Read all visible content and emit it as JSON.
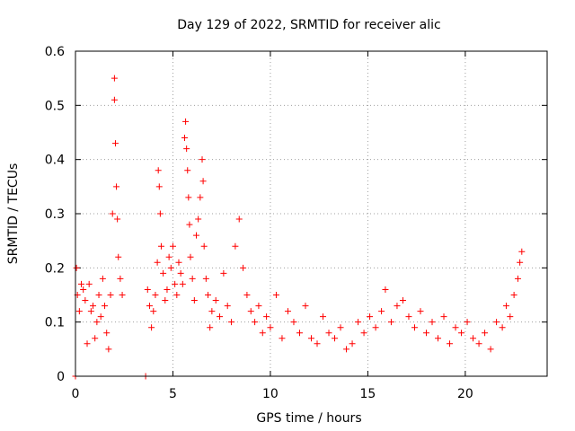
{
  "chart_data": {
    "type": "scatter",
    "title": "Day 129 of 2022, SRMTID for receiver alic",
    "xlabel": "GPS time / hours",
    "ylabel": "SRMTID / TECUs",
    "xlim": [
      0,
      24.2
    ],
    "ylim": [
      0,
      0.6
    ],
    "x_ticks": [
      0,
      5,
      10,
      15,
      20
    ],
    "y_ticks": [
      0,
      0.1,
      0.2,
      0.3,
      0.4,
      0.5,
      0.6
    ],
    "x_tick_labels": [
      "0",
      "5",
      "10",
      "15",
      "20"
    ],
    "y_tick_labels": [
      "0",
      "0.1",
      "0.2",
      "0.3",
      "0.4",
      "0.5",
      "0.6"
    ],
    "grid": true,
    "marker": "+",
    "series": [
      {
        "name": "SRMTID",
        "color": "#ff0000",
        "x": [
          0.0,
          0.05,
          0.1,
          0.2,
          0.3,
          0.4,
          0.5,
          0.6,
          0.7,
          0.8,
          0.9,
          1.0,
          1.1,
          1.2,
          1.3,
          1.4,
          1.5,
          1.6,
          1.7,
          1.8,
          1.9,
          2.0,
          2.0,
          2.05,
          2.1,
          2.15,
          2.2,
          2.3,
          2.4,
          3.6,
          3.7,
          3.8,
          3.9,
          4.0,
          4.1,
          4.2,
          4.25,
          4.3,
          4.35,
          4.4,
          4.5,
          4.6,
          4.7,
          4.8,
          4.9,
          5.0,
          5.1,
          5.2,
          5.3,
          5.4,
          5.5,
          5.6,
          5.65,
          5.7,
          5.75,
          5.8,
          5.85,
          5.9,
          6.0,
          6.1,
          6.2,
          6.3,
          6.4,
          6.5,
          6.55,
          6.6,
          6.7,
          6.8,
          6.9,
          7.0,
          7.2,
          7.4,
          7.6,
          7.8,
          8.0,
          8.2,
          8.4,
          8.6,
          8.8,
          9.0,
          9.2,
          9.4,
          9.6,
          9.8,
          10.0,
          10.3,
          10.6,
          10.9,
          11.2,
          11.5,
          11.8,
          12.1,
          12.4,
          12.7,
          13.0,
          13.3,
          13.6,
          13.9,
          14.2,
          14.5,
          14.8,
          15.1,
          15.4,
          15.7,
          15.9,
          16.2,
          16.5,
          16.8,
          17.1,
          17.4,
          17.7,
          18.0,
          18.3,
          18.6,
          18.9,
          19.2,
          19.5,
          19.8,
          20.1,
          20.4,
          20.7,
          21.0,
          21.3,
          21.6,
          21.9,
          22.1,
          22.3,
          22.5,
          22.7,
          22.8,
          22.9
        ],
        "y": [
          0.0,
          0.2,
          0.15,
          0.12,
          0.17,
          0.16,
          0.14,
          0.06,
          0.17,
          0.12,
          0.13,
          0.07,
          0.1,
          0.15,
          0.11,
          0.18,
          0.13,
          0.08,
          0.05,
          0.15,
          0.3,
          0.55,
          0.51,
          0.43,
          0.35,
          0.29,
          0.22,
          0.18,
          0.15,
          0.0,
          0.16,
          0.13,
          0.09,
          0.12,
          0.15,
          0.21,
          0.38,
          0.35,
          0.3,
          0.24,
          0.19,
          0.14,
          0.16,
          0.22,
          0.2,
          0.24,
          0.17,
          0.15,
          0.21,
          0.19,
          0.17,
          0.44,
          0.47,
          0.42,
          0.38,
          0.33,
          0.28,
          0.22,
          0.18,
          0.14,
          0.26,
          0.29,
          0.33,
          0.4,
          0.36,
          0.24,
          0.18,
          0.15,
          0.09,
          0.12,
          0.14,
          0.11,
          0.19,
          0.13,
          0.1,
          0.24,
          0.29,
          0.2,
          0.15,
          0.12,
          0.1,
          0.13,
          0.08,
          0.11,
          0.09,
          0.15,
          0.07,
          0.12,
          0.1,
          0.08,
          0.13,
          0.07,
          0.06,
          0.11,
          0.08,
          0.07,
          0.09,
          0.05,
          0.06,
          0.1,
          0.08,
          0.11,
          0.09,
          0.12,
          0.16,
          0.1,
          0.13,
          0.14,
          0.11,
          0.09,
          0.12,
          0.08,
          0.1,
          0.07,
          0.11,
          0.06,
          0.09,
          0.08,
          0.1,
          0.07,
          0.06,
          0.08,
          0.05,
          0.1,
          0.09,
          0.13,
          0.11,
          0.15,
          0.18,
          0.21,
          0.23
        ]
      }
    ]
  }
}
